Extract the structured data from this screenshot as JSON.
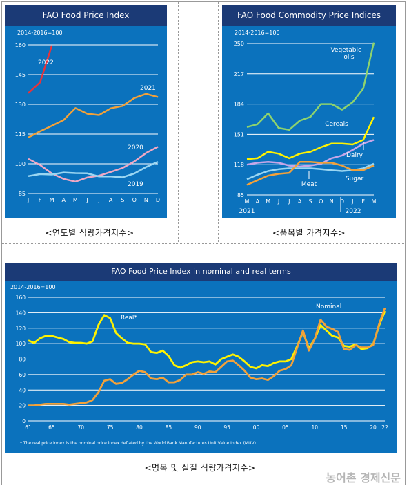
{
  "captions": {
    "yearly": "<연도별 식량가격지수>",
    "commodity": "<품목별 가격지수>",
    "nominal_real": "<명목 및 실질 식량가격지수>"
  },
  "watermark": "농어촌 경제신문",
  "colors": {
    "panel_bg": "#0b72bd",
    "title_bar": "#1b3a76",
    "orange": "#f2a13a",
    "red": "#e8333a",
    "light_blue": "#9ad6f2",
    "pink": "#f0a8c4",
    "yellow": "#fff200",
    "green": "#8ed36e",
    "purple": "#c7a6e8"
  },
  "chart_data": [
    {
      "type": "line",
      "title": "FAO Food Price Index",
      "units": "2014-2016=100",
      "x": [
        "J",
        "F",
        "M",
        "A",
        "M",
        "J",
        "J",
        "A",
        "S",
        "O",
        "N",
        "D"
      ],
      "ylim": [
        85,
        160
      ],
      "yticks": [
        85,
        100,
        115,
        130,
        145,
        160
      ],
      "series": [
        {
          "name": "2022",
          "color": "#e8333a",
          "values": [
            135.7,
            141.1,
            159.7,
            null,
            null,
            null,
            null,
            null,
            null,
            null,
            null,
            null
          ]
        },
        {
          "name": "2021",
          "color": "#f2a13a",
          "values": [
            113.3,
            116.4,
            119.2,
            122.1,
            128.1,
            125.3,
            124.6,
            128.0,
            129.2,
            133.2,
            135.3,
            133.7
          ]
        },
        {
          "name": "2020",
          "color": "#f0a8c4",
          "values": [
            102.5,
            99.4,
            95.1,
            92.4,
            91.0,
            93.1,
            94.0,
            95.9,
            97.9,
            101.2,
            105.5,
            108.6
          ]
        },
        {
          "name": "2019",
          "color": "#9ad6f2",
          "values": [
            93.8,
            94.8,
            94.6,
            95.6,
            95.3,
            95.2,
            93.6,
            93.6,
            93.2,
            95.1,
            98.4,
            101.0
          ]
        }
      ]
    },
    {
      "type": "line",
      "title": "FAO Food Commodity Price Indices",
      "units": "2014-2016=100",
      "x": [
        "M",
        "A",
        "M",
        "J",
        "J",
        "A",
        "S",
        "O",
        "N",
        "D",
        "J",
        "F",
        "M"
      ],
      "x_group_labels": [
        "2021",
        "2022"
      ],
      "ylim": [
        85,
        250
      ],
      "yticks": [
        85,
        118,
        151,
        184,
        217,
        250
      ],
      "series": [
        {
          "name": "Vegetable oils",
          "color": "#8ed36e",
          "values": [
            159,
            162,
            174,
            158,
            156,
            166,
            170,
            184,
            184,
            178,
            186,
            201,
            251
          ]
        },
        {
          "name": "Cereals",
          "color": "#fff200",
          "values": [
            124,
            125,
            132,
            130,
            125,
            130,
            132,
            137,
            141,
            141,
            140,
            145,
            170
          ]
        },
        {
          "name": "Dairy",
          "color": "#c7a6e8",
          "values": [
            118,
            120,
            121,
            120,
            117,
            116,
            117,
            119,
            125,
            128,
            134,
            141,
            145
          ]
        },
        {
          "name": "Meat",
          "color": "#9ad6f2",
          "values": [
            102,
            107,
            111,
            113,
            114,
            114,
            114,
            113,
            112,
            111,
            112,
            114,
            119
          ]
        },
        {
          "name": "Sugar",
          "color": "#f2a13a",
          "values": [
            96,
            101,
            106,
            108,
            109,
            121,
            121,
            120,
            120,
            117,
            112,
            112,
            117
          ]
        }
      ]
    },
    {
      "type": "line",
      "title": "FAO Food Price Index in nominal and real terms",
      "units": "2014-2016=100",
      "footnote": "* The real price index is the nominal price index deflated by the World Bank Manufactures Unit Value Index (MUV)",
      "xlim": [
        1961,
        2022
      ],
      "xticks": [
        "61",
        "65",
        "70",
        "75",
        "80",
        "85",
        "90",
        "95",
        "00",
        "05",
        "10",
        "15",
        "20",
        "22"
      ],
      "ylim": [
        0,
        160
      ],
      "yticks": [
        0,
        20,
        40,
        60,
        80,
        100,
        120,
        140,
        160
      ],
      "series": [
        {
          "name": "Real*",
          "color": "#fff200",
          "x": [
            1961,
            1962,
            1963,
            1964,
            1965,
            1966,
            1967,
            1968,
            1969,
            1970,
            1971,
            1972,
            1973,
            1974,
            1975,
            1976,
            1977,
            1978,
            1979,
            1980,
            1981,
            1982,
            1983,
            1984,
            1985,
            1986,
            1987,
            1988,
            1989,
            1990,
            1991,
            1992,
            1993,
            1994,
            1995,
            1996,
            1997,
            1998,
            1999,
            2000,
            2001,
            2002,
            2003,
            2004,
            2005,
            2006,
            2007,
            2008,
            2009,
            2010,
            2011,
            2012,
            2013,
            2014,
            2015,
            2016,
            2017,
            2018,
            2019,
            2020,
            2021,
            2022
          ],
          "values": [
            104,
            101,
            107,
            110,
            110,
            108,
            106,
            102,
            101,
            101,
            100,
            103,
            124,
            137,
            133,
            114,
            107,
            101,
            100,
            100,
            99,
            89,
            88,
            91,
            84,
            72,
            69,
            72,
            76,
            77,
            76,
            77,
            73,
            80,
            83,
            86,
            83,
            77,
            70,
            68,
            72,
            71,
            75,
            77,
            77,
            80,
            97,
            115,
            94,
            106,
            124,
            117,
            110,
            108,
            97,
            96,
            99,
            93,
            94,
            99,
            123,
            142
          ]
        },
        {
          "name": "Nominal",
          "color": "#f2a13a",
          "x": [
            1961,
            1962,
            1963,
            1964,
            1965,
            1966,
            1967,
            1968,
            1969,
            1970,
            1971,
            1972,
            1973,
            1974,
            1975,
            1976,
            1977,
            1978,
            1979,
            1980,
            1981,
            1982,
            1983,
            1984,
            1985,
            1986,
            1987,
            1988,
            1989,
            1990,
            1991,
            1992,
            1993,
            1994,
            1995,
            1996,
            1997,
            1998,
            1999,
            2000,
            2001,
            2002,
            2003,
            2004,
            2005,
            2006,
            2007,
            2008,
            2009,
            2010,
            2011,
            2012,
            2013,
            2014,
            2015,
            2016,
            2017,
            2018,
            2019,
            2020,
            2021,
            2022
          ],
          "values": [
            20,
            20,
            21,
            22,
            22,
            22,
            22,
            21,
            22,
            23,
            24,
            27,
            37,
            52,
            54,
            48,
            49,
            54,
            60,
            65,
            63,
            55,
            54,
            56,
            50,
            50,
            53,
            60,
            60,
            63,
            61,
            64,
            63,
            70,
            77,
            78,
            72,
            65,
            56,
            54,
            55,
            53,
            58,
            65,
            67,
            72,
            95,
            117,
            91,
            106,
            131,
            122,
            119,
            115,
            93,
            92,
            98,
            95,
            95,
            98,
            125,
            146
          ]
        }
      ]
    }
  ]
}
